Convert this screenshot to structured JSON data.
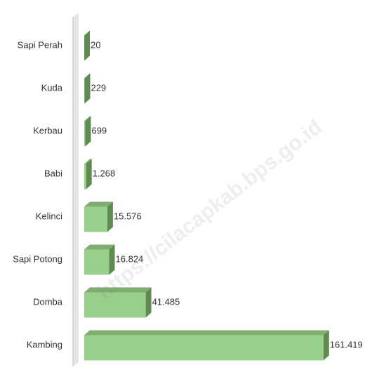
{
  "chart_data": {
    "type": "bar",
    "orientation": "horizontal",
    "categories": [
      "Sapi Perah",
      "Kuda",
      "Kerbau",
      "Babi",
      "Kelinci",
      "Sapi Potong",
      "Domba",
      "Kambing"
    ],
    "values": [
      20,
      229,
      699,
      1268,
      15576,
      16824,
      41485,
      161419
    ],
    "value_labels": [
      "20",
      "229",
      "699",
      "1.268",
      "15.576",
      "16.824",
      "41.485",
      "161.419"
    ],
    "color": "#98cf8a",
    "xlim": [
      0,
      180000
    ],
    "watermark": "https://cilacapkab.bps.go.id"
  }
}
